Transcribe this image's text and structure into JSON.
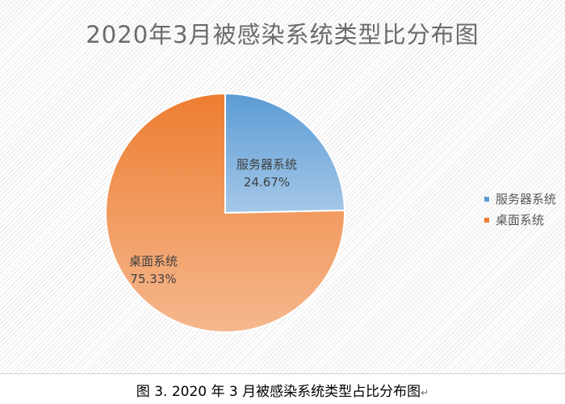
{
  "chart_data": {
    "type": "pie",
    "title": "2020年3月被感染系统类型比分布图",
    "categories": [
      "服务器系统",
      "桌面系统"
    ],
    "values": [
      24.67,
      75.33
    ],
    "value_labels": [
      "24.67%",
      "75.33%"
    ],
    "colors": [
      "#5b9bd5",
      "#ed7d31"
    ],
    "legend_position": "right",
    "start_angle_deg": 0,
    "direction": "clockwise"
  },
  "legend": {
    "items": [
      {
        "label": "服务器系统",
        "color": "#5b9bd5"
      },
      {
        "label": "桌面系统",
        "color": "#ed7d31"
      }
    ]
  },
  "caption": {
    "text": "图 3.  2020 年 3 月被感染系统类型占比分布图",
    "return_mark": "↵"
  }
}
